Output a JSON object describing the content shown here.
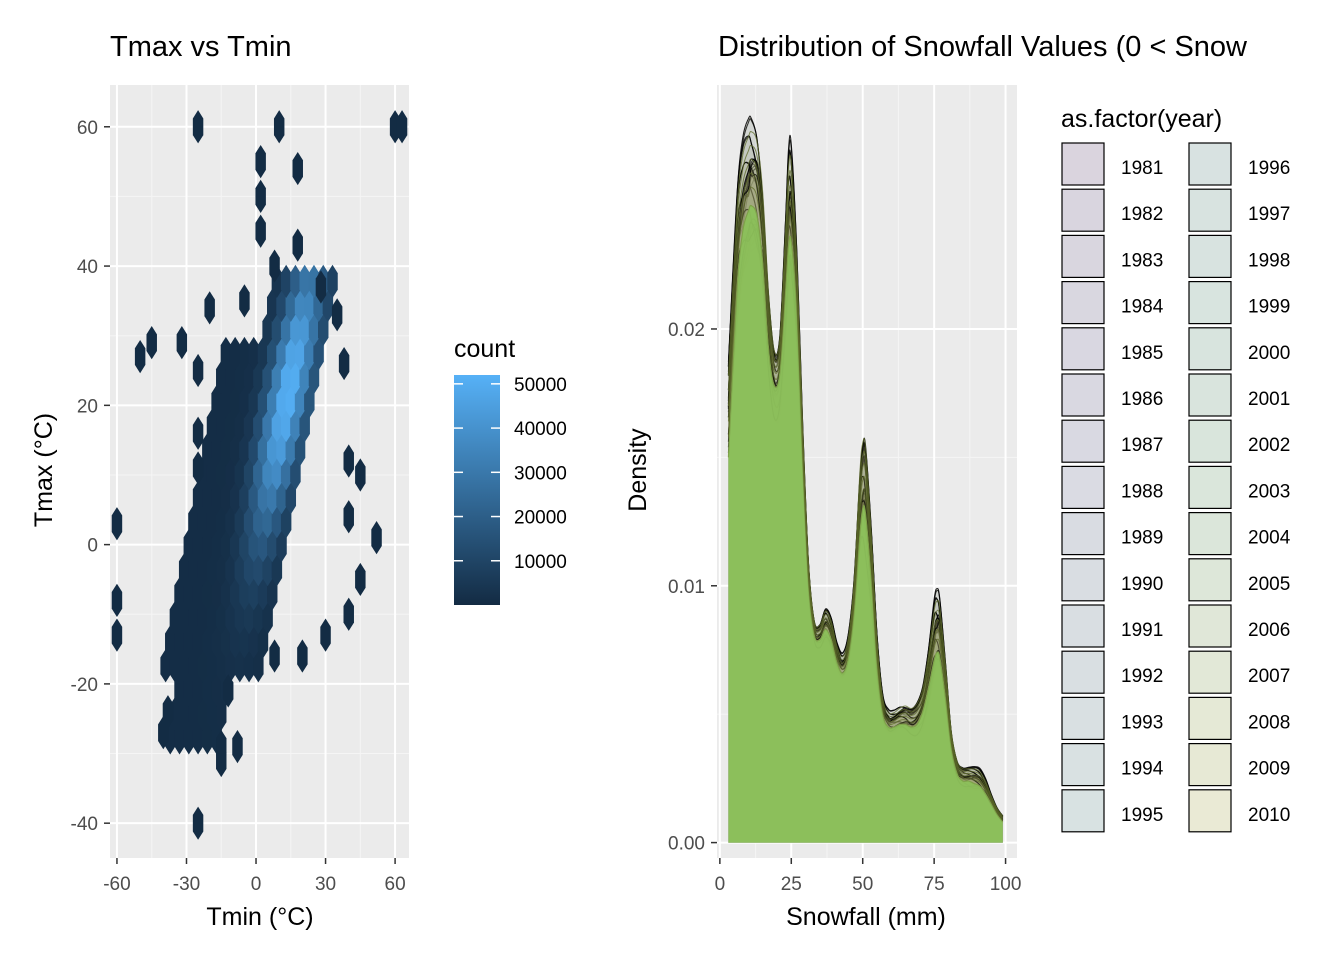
{
  "chart_data": [
    {
      "type": "heatmap",
      "subtype": "hexbin",
      "title": "Tmax vs Tmin",
      "xlabel": "Tmin (°C)",
      "ylabel": "Tmax (°C)",
      "xlim": [
        -63,
        66
      ],
      "ylim": [
        -45,
        66
      ],
      "xticks": [
        -60,
        -30,
        0,
        30,
        60
      ],
      "xtick_labels": [
        "-60",
        "-30",
        "0",
        "30",
        "60"
      ],
      "yticks": [
        -40,
        -20,
        0,
        20,
        40,
        60
      ],
      "ytick_labels": [
        "-40",
        "-20",
        "0",
        "20",
        "40",
        "60"
      ],
      "grid": true,
      "legend": {
        "title": "count",
        "position": "right",
        "min": 0,
        "max": 52000,
        "ticks": [
          10000,
          20000,
          30000,
          40000,
          50000
        ],
        "tick_labels": [
          "10000",
          "20000",
          "30000",
          "40000",
          "50000"
        ],
        "color_low": "#132B43",
        "color_high": "#56B1F7"
      },
      "density_model": {
        "bands": [
          {
            "ymin": -30,
            "ymax": -18,
            "xc": -22,
            "xc_slope": 0.55,
            "half_width": 12
          },
          {
            "ymin": -18,
            "ymax": 0,
            "xc": -20,
            "xc_slope": 0.55,
            "half_width": 21
          },
          {
            "ymin": 0,
            "ymax": 30,
            "xc": -20,
            "xc_slope": 0.55,
            "half_width": 22
          },
          {
            "ymin": 30,
            "ymax": 38,
            "xc": -10,
            "xc_slope": 0.55,
            "half_width": 14
          }
        ],
        "ridge": {
          "x0": 2,
          "slope": 0.55,
          "sigma_x": 6,
          "center_y": 22,
          "sigma_y": 14,
          "peak": 52000
        },
        "outliers": [
          [
            -25,
            60
          ],
          [
            10,
            60
          ],
          [
            60,
            60
          ],
          [
            63,
            60
          ],
          [
            2,
            55
          ],
          [
            2,
            50
          ],
          [
            2,
            45
          ],
          [
            18,
            54
          ],
          [
            -60,
            3
          ],
          [
            -60,
            -8
          ],
          [
            -60,
            -13
          ],
          [
            -50,
            27
          ],
          [
            -45,
            29
          ],
          [
            -32,
            29
          ],
          [
            -25,
            25
          ],
          [
            -25,
            16
          ],
          [
            -25,
            11
          ],
          [
            -40,
            -27
          ],
          [
            -25,
            -40
          ],
          [
            -15,
            -31
          ],
          [
            -8,
            -29
          ],
          [
            52,
            1
          ],
          [
            40,
            4
          ],
          [
            45,
            -5
          ],
          [
            40,
            -10
          ],
          [
            30,
            -13
          ],
          [
            20,
            -16
          ],
          [
            8,
            -16
          ],
          [
            -12,
            -21
          ],
          [
            -15,
            -29
          ],
          [
            45,
            10
          ],
          [
            40,
            12
          ],
          [
            38,
            26
          ],
          [
            35,
            33
          ],
          [
            28,
            37
          ],
          [
            18,
            43
          ],
          [
            8,
            40
          ],
          [
            -5,
            35
          ],
          [
            -20,
            34
          ],
          [
            -38,
            -24
          ]
        ]
      }
    },
    {
      "type": "area",
      "subtype": "density",
      "title": "Distribution of Snowfall Values (0 < Snow",
      "xlabel": "Snowfall (mm)",
      "ylabel": "Density",
      "xlim": [
        -1,
        104
      ],
      "ylim": [
        -0.0006,
        0.0295
      ],
      "xticks": [
        0,
        25,
        50,
        75,
        100
      ],
      "xtick_labels": [
        "0",
        "25",
        "50",
        "75",
        "100"
      ],
      "yticks": [
        0,
        0.01,
        0.02
      ],
      "ytick_labels": [
        "0.00",
        "0.01",
        "0.02"
      ],
      "grid": true,
      "legend": {
        "title": "as.factor(year)",
        "position": "right",
        "columns": 2,
        "entries": [
          {
            "label": "1981",
            "color": "#DAD4DE"
          },
          {
            "label": "1982",
            "color": "#D9D5DF"
          },
          {
            "label": "1983",
            "color": "#D9D6DF"
          },
          {
            "label": "1984",
            "color": "#D9D7E0"
          },
          {
            "label": "1985",
            "color": "#D9D7E1"
          },
          {
            "label": "1986",
            "color": "#D9D8E1"
          },
          {
            "label": "1987",
            "color": "#D9D9E2"
          },
          {
            "label": "1988",
            "color": "#DADBE3"
          },
          {
            "label": "1989",
            "color": "#D9DCE2"
          },
          {
            "label": "1990",
            "color": "#D9DDE2"
          },
          {
            "label": "1991",
            "color": "#D9DEE2"
          },
          {
            "label": "1992",
            "color": "#D9DFE2"
          },
          {
            "label": "1993",
            "color": "#D9E0E2"
          },
          {
            "label": "1994",
            "color": "#D9E1E2"
          },
          {
            "label": "1995",
            "color": "#D8E2E2"
          },
          {
            "label": "1996",
            "color": "#D8E2E1"
          },
          {
            "label": "1997",
            "color": "#D8E3E0"
          },
          {
            "label": "1998",
            "color": "#D8E3E0"
          },
          {
            "label": "1999",
            "color": "#D8E4DF"
          },
          {
            "label": "2000",
            "color": "#D8E4DE"
          },
          {
            "label": "2001",
            "color": "#D9E4DD"
          },
          {
            "label": "2002",
            "color": "#D9E5DC"
          },
          {
            "label": "2003",
            "color": "#DAE6DB"
          },
          {
            "label": "2004",
            "color": "#DBE6DA"
          },
          {
            "label": "2005",
            "color": "#DDE7D9"
          },
          {
            "label": "2006",
            "color": "#E0E7D8"
          },
          {
            "label": "2007",
            "color": "#E2E8D7"
          },
          {
            "label": "2008",
            "color": "#E5E9D6"
          },
          {
            "label": "2009",
            "color": "#E7E9D5"
          },
          {
            "label": "2010",
            "color": "#EAEAD5"
          }
        ]
      },
      "fill_color": "#8BC05A",
      "curve_color": "#000000",
      "x": [
        3,
        6,
        8,
        10,
        11,
        13,
        15,
        17,
        19,
        21,
        23,
        24,
        25,
        27,
        29,
        31,
        33,
        35,
        37,
        39,
        41,
        43,
        45,
        47,
        49,
        50,
        51,
        53,
        55,
        57,
        59,
        61,
        63,
        65,
        67,
        69,
        71,
        73,
        75,
        76,
        77,
        79,
        81,
        83,
        85,
        87,
        89,
        91,
        93,
        95,
        97,
        99
      ],
      "envelope": [
        0.019,
        0.0255,
        0.0275,
        0.0282,
        0.0284,
        0.028,
        0.026,
        0.022,
        0.0195,
        0.02,
        0.0245,
        0.027,
        0.0272,
        0.023,
        0.0165,
        0.0112,
        0.0088,
        0.0086,
        0.0092,
        0.0088,
        0.0078,
        0.0074,
        0.0082,
        0.0105,
        0.015,
        0.0162,
        0.016,
        0.0125,
        0.0082,
        0.0058,
        0.0052,
        0.0052,
        0.0054,
        0.0055,
        0.0054,
        0.0056,
        0.0062,
        0.0076,
        0.0095,
        0.0099,
        0.0096,
        0.0072,
        0.0045,
        0.0033,
        0.003,
        0.003,
        0.003,
        0.0029,
        0.0025,
        0.0019,
        0.0014,
        0.0011
      ],
      "mean_curve": [
        0.015,
        0.0215,
        0.0238,
        0.0246,
        0.0248,
        0.0244,
        0.0226,
        0.0193,
        0.0178,
        0.0183,
        0.0215,
        0.0232,
        0.0234,
        0.0205,
        0.0148,
        0.0101,
        0.0081,
        0.0079,
        0.0083,
        0.0079,
        0.007,
        0.0066,
        0.0072,
        0.009,
        0.012,
        0.013,
        0.0128,
        0.0102,
        0.0069,
        0.005,
        0.0045,
        0.0045,
        0.0046,
        0.0046,
        0.0045,
        0.0046,
        0.0051,
        0.006,
        0.0071,
        0.0074,
        0.0072,
        0.0056,
        0.0037,
        0.0027,
        0.0024,
        0.0024,
        0.0023,
        0.0022,
        0.0019,
        0.0015,
        0.0011,
        0.0008
      ],
      "floor_curve": [
        0.0145,
        0.0185,
        0.0198,
        0.0205,
        0.0207,
        0.0203,
        0.0191,
        0.0168,
        0.0157,
        0.0161,
        0.0183,
        0.0192,
        0.0193,
        0.0174,
        0.013,
        0.0091,
        0.0075,
        0.0073,
        0.0076,
        0.0072,
        0.0064,
        0.006,
        0.0064,
        0.0077,
        0.0094,
        0.01,
        0.0098,
        0.0081,
        0.0058,
        0.0044,
        0.0039,
        0.0039,
        0.0039,
        0.0038,
        0.0037,
        0.0038,
        0.0041,
        0.0047,
        0.0053,
        0.0055,
        0.0054,
        0.0043,
        0.003,
        0.0022,
        0.002,
        0.0019,
        0.0018,
        0.0017,
        0.0015,
        0.0012,
        0.0009,
        0.0007
      ]
    }
  ]
}
